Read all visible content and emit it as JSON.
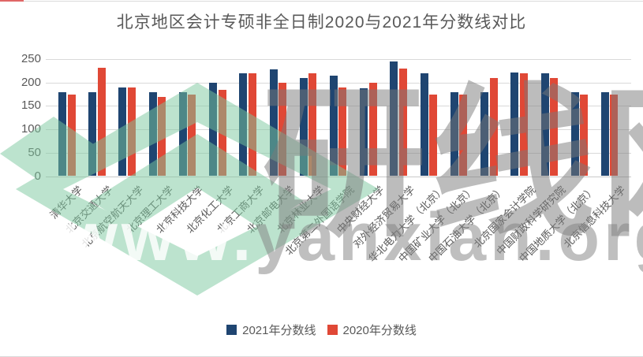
{
  "title": "北京地区会计专硕非全日制2020与2021年分数线对比",
  "watermark": {
    "brand_text": "研线网",
    "url_text_white": "www.",
    "url_text_gray": "yanxian.org",
    "logo_color": "#7CC89E"
  },
  "style": {
    "text_color": "#595959",
    "grid_color": "#D9D9D9",
    "series_2021_color": "#1F4571",
    "series_2020_color": "#E04836"
  },
  "chart_data": {
    "type": "bar",
    "title": "北京地区会计专硕非全日制2020与2021年分数线对比",
    "xlabel": "",
    "ylabel": "",
    "ylim": [
      0,
      250
    ],
    "yticks": [
      0,
      50,
      100,
      150,
      200,
      250
    ],
    "grid": true,
    "legend_position": "bottom",
    "categories": [
      "清华大学",
      "北京交通大学",
      "北京航空航天大学",
      "北京理工大学",
      "北京科技大学",
      "北京化工大学",
      "北京工商大学",
      "北京邮电大学",
      "北京林业大学",
      "北京第二外国语学院",
      "中央财经大学",
      "对外经济贸易大学",
      "华北电力大学（北京）",
      "中国矿业大学（北京）",
      "中国石油大学（北京）",
      "北京国家会计学院",
      "中国财政科学研究院",
      "中国地质大学（北京）",
      "北京信息科技大学"
    ],
    "series": [
      {
        "name": "2021年分数线",
        "color": "#1F4571",
        "values": [
          179,
          179,
          190,
          179,
          179,
          200,
          220,
          228,
          210,
          214,
          188,
          245,
          220,
          179,
          179,
          221,
          219,
          179,
          179
        ]
      },
      {
        "name": "2020年分数线",
        "color": "#E04836",
        "values": [
          175,
          231,
          189,
          170,
          175,
          185,
          219,
          200,
          219,
          189,
          199,
          230,
          175,
          175,
          210,
          220,
          209,
          175,
          175
        ]
      }
    ]
  }
}
